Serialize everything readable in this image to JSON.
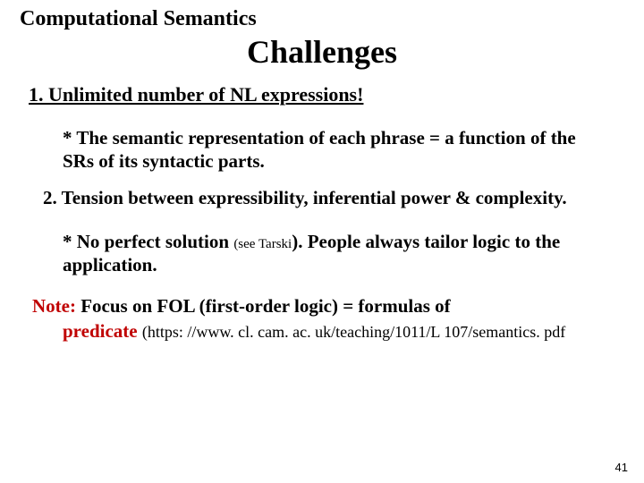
{
  "header": "Computational Semantics",
  "title": "Challenges",
  "item1": "1.  Unlimited number of NL expressions!",
  "sub1": "* The semantic representation of each phrase = a function of the SRs of its syntactic parts.",
  "item2": "2. Tension between expressibility, inferential power & complexity.",
  "sub2_a": "* No perfect solution ",
  "sub2_small": "(see Tarski",
  "sub2_b": "). People always tailor logic to the application.",
  "note_label": "Note:",
  "note_rest": "   Focus on FOL (first-order logic) = formulas of",
  "predicate_word": "predicate ",
  "url": "(https: //www. cl. cam. ac. uk/teaching/1011/L 107/semantics. pdf",
  "pagenum": "41",
  "colors": {
    "accent": "#c00000",
    "text": "#000000",
    "bg": "#ffffff"
  }
}
